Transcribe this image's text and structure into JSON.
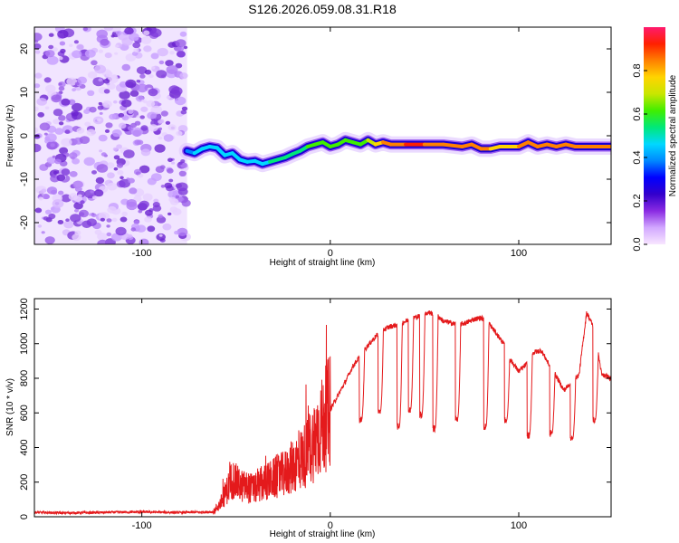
{
  "title": "S126.2026.059.08.31.R18",
  "chart_data": [
    {
      "type": "heatmap",
      "xlabel": "Height of straight line (km)",
      "ylabel": "Frequency (Hz)",
      "xlim": [
        -157,
        149
      ],
      "ylim": [
        -25,
        25
      ],
      "xticks": [
        -100,
        0,
        100
      ],
      "xtick_labels": [
        "-100",
        "0",
        "100"
      ],
      "yticks": [
        -20,
        -10,
        0,
        10,
        20
      ],
      "ytick_labels": [
        "-20",
        "-10",
        "0",
        "10",
        "20"
      ],
      "noise_region_x": [
        -157,
        -76
      ],
      "colorbar": {
        "label": "Normalized spectral amplitude",
        "range": [
          0,
          1
        ],
        "ticks": [
          0,
          0.2,
          0.4,
          0.6,
          0.8
        ],
        "tick_labels": [
          "0.0",
          "0.2",
          "0.4",
          "0.6",
          "0.8"
        ],
        "colors": [
          "#f8e6ff",
          "#d2a8ff",
          "#8a2be2",
          "#3300cc",
          "#0000ff",
          "#0088ff",
          "#00d8ff",
          "#00e87a",
          "#40ee00",
          "#c8e600",
          "#ffd400",
          "#ff8000",
          "#ff2000",
          "#ff1a6e"
        ]
      },
      "ridge": {
        "x": [
          -76,
          -72,
          -68,
          -64,
          -60,
          -56,
          -52,
          -48,
          -44,
          -40,
          -36,
          -32,
          -28,
          -24,
          -20,
          -16,
          -12,
          -8,
          -4,
          0,
          4,
          8,
          12,
          16,
          20,
          24,
          28,
          32,
          40,
          50,
          60,
          70,
          75,
          80,
          85,
          90,
          95,
          100,
          105,
          110,
          115,
          120,
          125,
          130,
          140,
          149
        ],
        "y": [
          -3.5,
          -4.0,
          -3.0,
          -2.5,
          -2.8,
          -4.5,
          -4.0,
          -5.5,
          -6.0,
          -5.8,
          -6.5,
          -6.0,
          -5.5,
          -5.0,
          -4.2,
          -3.5,
          -2.5,
          -2.0,
          -1.5,
          -2.5,
          -2.0,
          -1.0,
          -1.5,
          -2.0,
          -1.0,
          -2.0,
          -1.5,
          -2.0,
          -2.0,
          -2.0,
          -2.0,
          -2.5,
          -2.0,
          -3.0,
          -3.0,
          -2.5,
          -2.5,
          -2.5,
          -1.5,
          -2.5,
          -2.0,
          -2.5,
          -2.0,
          -2.5,
          -2.5,
          -2.5
        ],
        "amplitude": [
          0.35,
          0.4,
          0.45,
          0.5,
          0.45,
          0.5,
          0.4,
          0.45,
          0.4,
          0.45,
          0.45,
          0.5,
          0.5,
          0.55,
          0.55,
          0.55,
          0.6,
          0.6,
          0.62,
          0.6,
          0.6,
          0.65,
          0.62,
          0.62,
          0.65,
          0.7,
          0.8,
          0.85,
          0.9,
          0.88,
          0.85,
          0.8,
          0.82,
          0.9,
          0.85,
          0.75,
          0.8,
          0.78,
          0.85,
          0.8,
          0.82,
          0.9,
          0.85,
          0.88,
          0.85,
          0.8
        ]
      }
    },
    {
      "type": "line",
      "xlabel": "Height of straight line (km)",
      "ylabel": "SNR (10 * v/v)",
      "xlim": [
        -157,
        149
      ],
      "ylim": [
        0,
        1260
      ],
      "xticks": [
        -100,
        0,
        100
      ],
      "xtick_labels": [
        "-100",
        "0",
        "100"
      ],
      "yticks": [
        0,
        200,
        400,
        600,
        800,
        1000,
        1200
      ],
      "ytick_labels": [
        "0",
        "200",
        "400",
        "600",
        "800",
        "1000",
        "1200"
      ],
      "color": "#e41a1c",
      "series": [
        {
          "name": "SNR",
          "x": [
            -157,
            -140,
            -120,
            -100,
            -80,
            -62,
            -58,
            -55,
            -52,
            -48,
            -44,
            -40,
            -36,
            -32,
            -28,
            -24,
            -20,
            -16,
            -12,
            -8,
            -4,
            0,
            4,
            8,
            12,
            16,
            20,
            24,
            28,
            32,
            36,
            40,
            44,
            48,
            52,
            56,
            60,
            64,
            68,
            72,
            76,
            80,
            84,
            88,
            92,
            96,
            100,
            104,
            108,
            112,
            116,
            120,
            124,
            128,
            132,
            136,
            140,
            144,
            149
          ],
          "y": [
            25,
            22,
            25,
            28,
            24,
            28,
            80,
            150,
            220,
            180,
            170,
            160,
            190,
            210,
            230,
            250,
            290,
            330,
            370,
            450,
            530,
            620,
            700,
            780,
            870,
            930,
            990,
            1040,
            1080,
            1100,
            1110,
            1130,
            1150,
            1160,
            1180,
            1170,
            1130,
            1120,
            1110,
            1120,
            1140,
            1150,
            1120,
            1060,
            1000,
            900,
            840,
            880,
            950,
            960,
            880,
            810,
            730,
            780,
            820,
            1180,
            1090,
            820,
            800
          ],
          "dips": [
            {
              "x": 16,
              "y": 560
            },
            {
              "x": 26,
              "y": 610
            },
            {
              "x": 36,
              "y": 520
            },
            {
              "x": 42,
              "y": 620
            },
            {
              "x": 48,
              "y": 590
            },
            {
              "x": 55,
              "y": 510
            },
            {
              "x": 67,
              "y": 570
            },
            {
              "x": 82,
              "y": 520
            },
            {
              "x": 93,
              "y": 560
            },
            {
              "x": 105,
              "y": 470
            },
            {
              "x": 117,
              "y": 480
            },
            {
              "x": 128,
              "y": 450
            },
            {
              "x": 140,
              "y": 560
            }
          ]
        }
      ]
    }
  ]
}
